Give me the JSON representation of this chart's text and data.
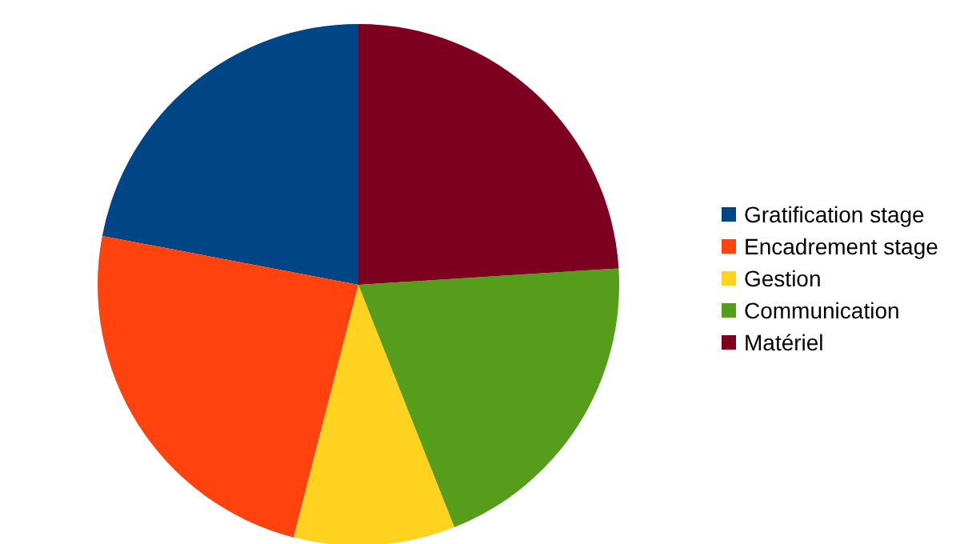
{
  "chart_data": {
    "type": "pie",
    "categories": [
      "Gratification stage",
      "Encadrement stage",
      "Gestion",
      "Communication",
      "Matériel"
    ],
    "values": [
      22,
      24,
      10,
      20,
      24
    ],
    "colors": [
      "#004586",
      "#ff420e",
      "#ffd320",
      "#579d1c",
      "#7e0021"
    ],
    "legend": "right"
  }
}
